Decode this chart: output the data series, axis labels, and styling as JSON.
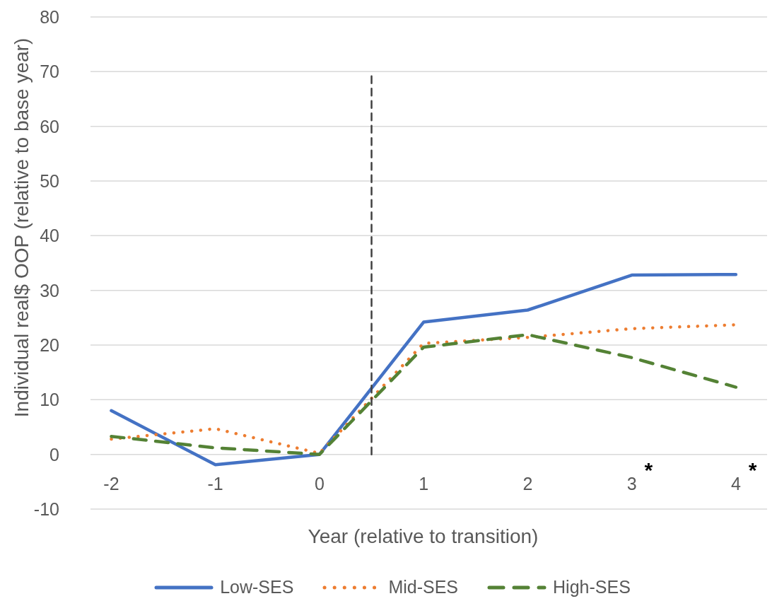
{
  "chart_data": {
    "type": "line",
    "xlabel": "Year (relative to transition)",
    "ylabel": "Individual real$ OOP (relative to base year)",
    "x": [
      -2,
      -1,
      0,
      1,
      2,
      3,
      4
    ],
    "xlim": [
      -2.2,
      4.3
    ],
    "xticks": [
      -2,
      -1,
      0,
      1,
      2,
      3,
      4
    ],
    "ylim": [
      -10,
      80
    ],
    "yticks": [
      -10,
      0,
      10,
      20,
      30,
      40,
      50,
      60,
      70,
      80
    ],
    "grid": "y",
    "legend": "bottom",
    "series": [
      {
        "name": "Low-SES",
        "color": "#4472c4",
        "line_style": "solid",
        "values": [
          8.0,
          -1.9,
          0,
          24.2,
          26.4,
          32.8,
          32.9
        ]
      },
      {
        "name": "Mid-SES",
        "color": "#ed7d31",
        "line_style": "dotted",
        "values": [
          2.8,
          4.7,
          0.2,
          20.3,
          21.4,
          23.0,
          23.7
        ]
      },
      {
        "name": "High-SES",
        "color": "#548235",
        "line_style": "dashed",
        "values": [
          3.3,
          1.2,
          0,
          19.6,
          21.9,
          17.7,
          12.3
        ]
      },
      {
        "x": [
          0.5,
          0.5
        ],
        "values": [
          0,
          70
        ],
        "color": "#404040",
        "line_style": "dashed"
      }
    ],
    "annotations": [
      "*",
      "*"
    ]
  }
}
